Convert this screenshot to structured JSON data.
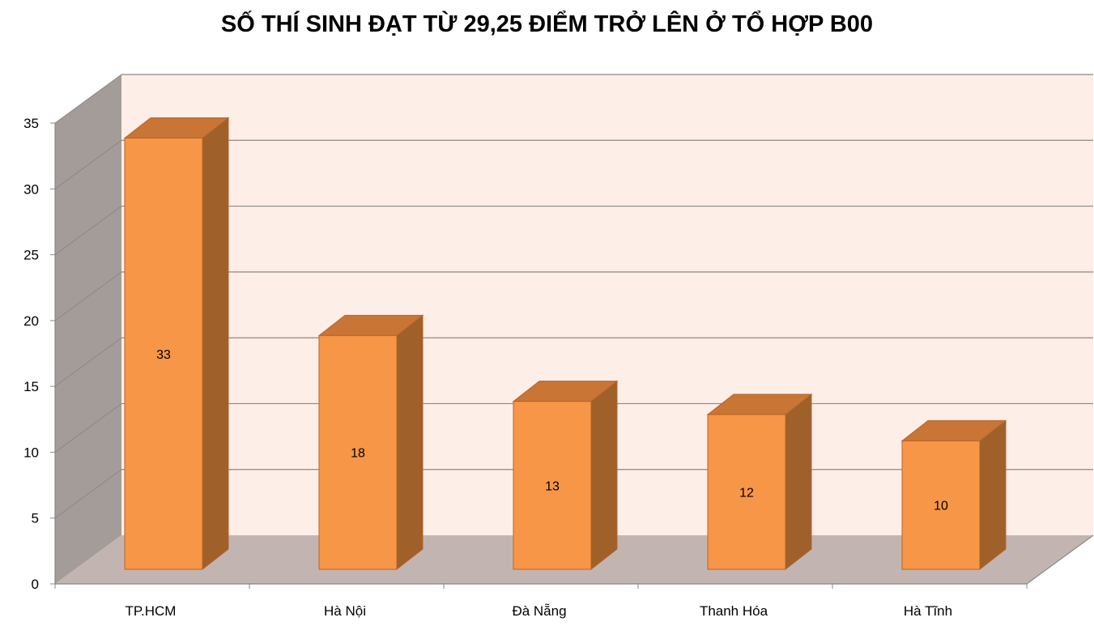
{
  "chart_data": {
    "type": "bar",
    "title": "SỐ THÍ SINH ĐẠT TỪ 29,25 ĐIỂM TRỞ LÊN Ở TỔ HỢP B00",
    "categories": [
      "TP.HCM",
      "Hà Nội",
      "Đà Nẵng",
      "Thanh Hóa",
      "Hà Tĩnh"
    ],
    "values": [
      33,
      18,
      13,
      12,
      10
    ],
    "data_labels": [
      "33",
      "18",
      "13",
      "12",
      "10"
    ],
    "yticks": [
      "0",
      "5",
      "10",
      "15",
      "20",
      "25",
      "30",
      "35"
    ],
    "ylim": [
      0,
      35
    ],
    "grid": true,
    "legend": "none",
    "colors": {
      "bar_front": "#F79646",
      "bar_side": "#A0602A",
      "bar_top": "#C87536",
      "bar_edge": "#B5652C",
      "back_wall": "#FDEEE7",
      "side_wall": "#A49C98",
      "floor": "#C2B5B1",
      "gridline": "#8C8886"
    }
  }
}
